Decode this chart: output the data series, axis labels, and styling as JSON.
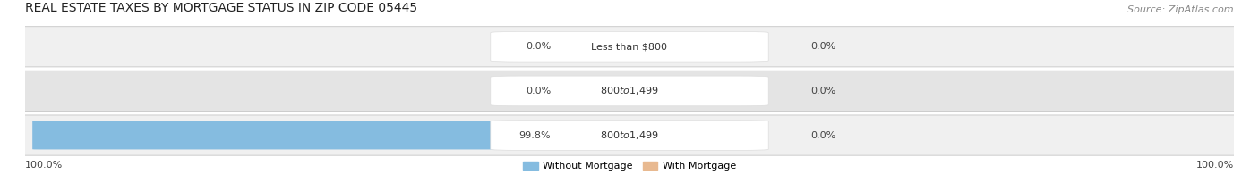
{
  "title": "REAL ESTATE TAXES BY MORTGAGE STATUS IN ZIP CODE 05445",
  "source": "Source: ZipAtlas.com",
  "rows": [
    {
      "label": "Less than $800",
      "without_mortgage": 0.0,
      "with_mortgage": 0.0
    },
    {
      "label": "$800 to $1,499",
      "without_mortgage": 0.0,
      "with_mortgage": 0.0
    },
    {
      "label": "$800 to $1,499",
      "without_mortgage": 99.8,
      "with_mortgage": 0.0
    }
  ],
  "color_without": "#85bce0",
  "color_with": "#e8b990",
  "row_bg_light": "#f0f0f0",
  "row_bg_dark": "#e4e4e4",
  "row_edge_color": "#cccccc",
  "legend_without": "Without Mortgage",
  "legend_with": "With Mortgage",
  "left_label": "100.0%",
  "right_label": "100.0%",
  "title_fontsize": 10,
  "source_fontsize": 8,
  "bar_label_fontsize": 8,
  "category_fontsize": 8,
  "legend_fontsize": 8
}
